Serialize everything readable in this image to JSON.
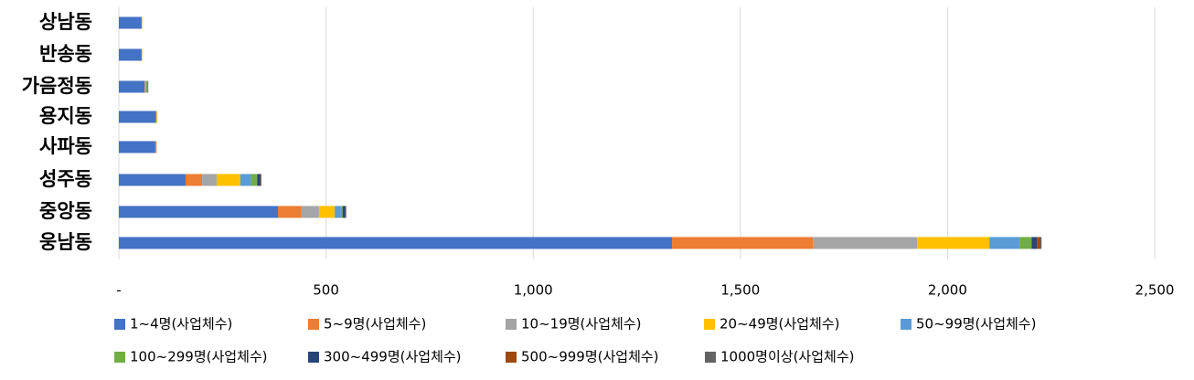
{
  "chart_data": {
    "type": "stacked-barh",
    "categories": [
      "상남동",
      "반송동",
      "가음정동",
      "용지동",
      "사파동",
      "성주동",
      "중앙동",
      "웅남동"
    ],
    "series": [
      {
        "name": "1~4명(사업체수)",
        "color": "#4472c4",
        "values": [
          55,
          55,
          62,
          90,
          88,
          161,
          384,
          1335
        ]
      },
      {
        "name": "5~9명(사업체수)",
        "color": "#ed7d31",
        "values": [
          1,
          1,
          1,
          0,
          3,
          40,
          57,
          340
        ]
      },
      {
        "name": "10~19명(사업체수)",
        "color": "#a5a5a5",
        "values": [
          0,
          0,
          3,
          1,
          0,
          35,
          42,
          252
        ]
      },
      {
        "name": "20~49명(사업체수)",
        "color": "#ffc000",
        "values": [
          0,
          0,
          0,
          2,
          0,
          57,
          38,
          174
        ]
      },
      {
        "name": "50~99명(사업체수)",
        "color": "#5b9bd5",
        "values": [
          0,
          0,
          0,
          0,
          0,
          26,
          15,
          73
        ]
      },
      {
        "name": "100~299명(사업체수)",
        "color": "#70ad47",
        "values": [
          0,
          0,
          4,
          0,
          0,
          15,
          4,
          29
        ]
      },
      {
        "name": "300~499명(사업체수)",
        "color": "#264478",
        "values": [
          0,
          0,
          1,
          0,
          0,
          7,
          7,
          13
        ]
      },
      {
        "name": "500~999명(사업체수)",
        "color": "#9e480e",
        "values": [
          0,
          0,
          0,
          0,
          0,
          1,
          1,
          7
        ]
      },
      {
        "name": "1000명이상(사업체수)",
        "color": "#636363",
        "values": [
          0,
          0,
          0,
          0,
          0,
          2,
          1,
          4
        ]
      }
    ],
    "xlim": [
      0,
      2500
    ],
    "xticks": [
      {
        "value": 0,
        "label": "-"
      },
      500,
      {
        "value": 1000,
        "label": "1,000"
      },
      {
        "value": 1500,
        "label": "1,500"
      },
      {
        "value": 2000,
        "label": "2,000"
      },
      {
        "value": 2500,
        "label": "2,500"
      }
    ],
    "grid": true
  }
}
